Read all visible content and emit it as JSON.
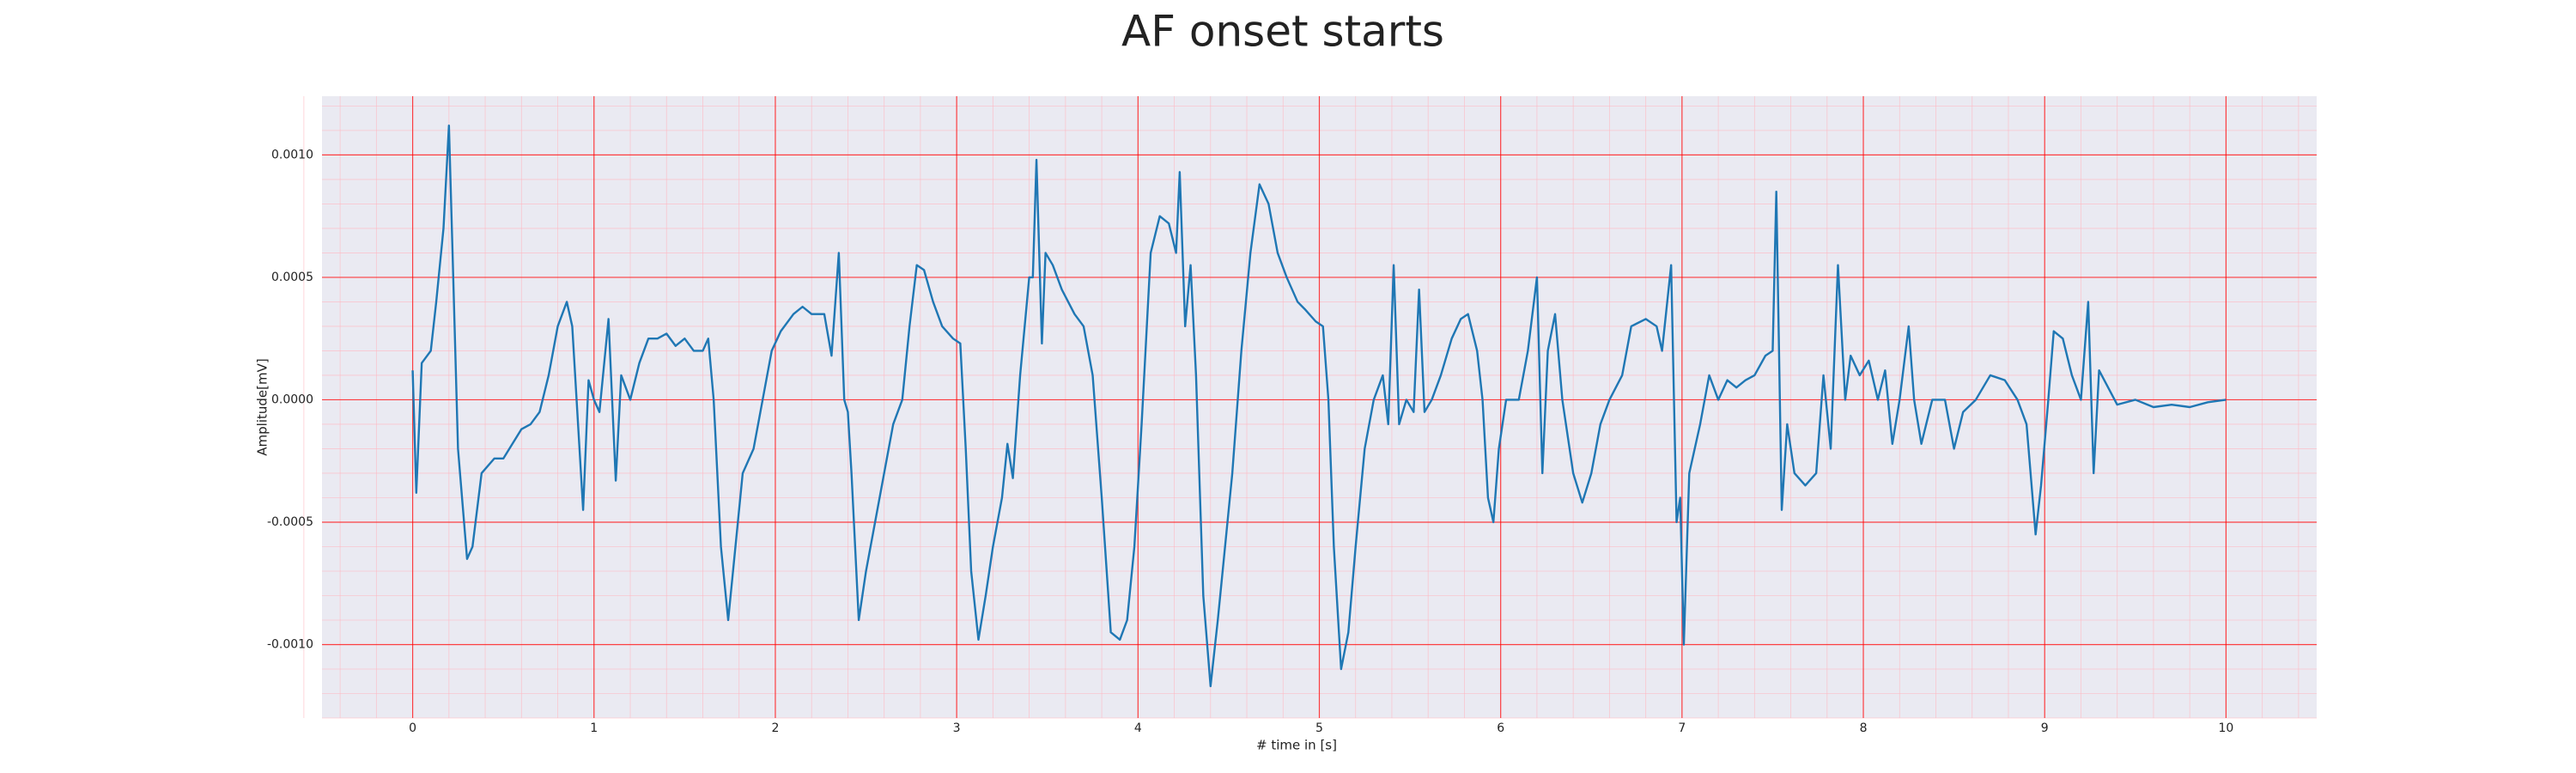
{
  "chart_data": {
    "type": "line",
    "title": "AF onset starts",
    "xlabel": "# time in [s]",
    "ylabel": "Amplitude[mV]",
    "color": "#1f77b4",
    "grid": true,
    "xlim": [
      -0.5,
      10.5
    ],
    "ylim": [
      -0.0013,
      0.00124
    ],
    "xticks": [
      0,
      1,
      2,
      3,
      4,
      5,
      6,
      7,
      8,
      9,
      10
    ],
    "yticks": [
      {
        "value": -0.001,
        "label": "-0.0010"
      },
      {
        "value": -0.0005,
        "label": "-0.0005"
      },
      {
        "value": 0,
        "label": "0.0000"
      },
      {
        "value": 0.0005,
        "label": "0.0005"
      },
      {
        "value": 0.001,
        "label": "0.0010"
      }
    ],
    "x": [
      0,
      0.02,
      0.05,
      0.1,
      0.13,
      0.17,
      0.2,
      0.22,
      0.25,
      0.3,
      0.33,
      0.38,
      0.45,
      0.5,
      0.55,
      0.6,
      0.65,
      0.7,
      0.75,
      0.8,
      0.85,
      0.88,
      0.92,
      0.94,
      0.97,
      1.0,
      1.03,
      1.08,
      1.12,
      1.15,
      1.2,
      1.25,
      1.3,
      1.35,
      1.4,
      1.45,
      1.5,
      1.55,
      1.6,
      1.63,
      1.66,
      1.7,
      1.74,
      1.78,
      1.82,
      1.88,
      1.93,
      1.98,
      2.03,
      2.1,
      2.15,
      2.2,
      2.27,
      2.31,
      2.35,
      2.38,
      2.4,
      2.42,
      2.46,
      2.5,
      2.55,
      2.6,
      2.65,
      2.7,
      2.74,
      2.78,
      2.82,
      2.87,
      2.92,
      2.98,
      3.02,
      3.05,
      3.08,
      3.12,
      3.16,
      3.2,
      3.25,
      3.28,
      3.31,
      3.35,
      3.4,
      3.42,
      3.44,
      3.47,
      3.49,
      3.53,
      3.58,
      3.65,
      3.7,
      3.75,
      3.8,
      3.85,
      3.9,
      3.94,
      3.98,
      4.02,
      4.07,
      4.12,
      4.17,
      4.21,
      4.23,
      4.26,
      4.29,
      4.32,
      4.36,
      4.4,
      4.44,
      4.48,
      4.52,
      4.57,
      4.62,
      4.67,
      4.72,
      4.77,
      4.82,
      4.88,
      4.92,
      4.98,
      5.02,
      5.05,
      5.08,
      5.12,
      5.16,
      5.2,
      5.25,
      5.3,
      5.35,
      5.38,
      5.41,
      5.44,
      5.48,
      5.52,
      5.55,
      5.58,
      5.62,
      5.67,
      5.73,
      5.78,
      5.82,
      5.87,
      5.9,
      5.93,
      5.96,
      5.99,
      6.03,
      6.1,
      6.15,
      6.2,
      6.23,
      6.26,
      6.3,
      6.34,
      6.4,
      6.45,
      6.5,
      6.55,
      6.6,
      6.67,
      6.72,
      6.8,
      6.86,
      6.89,
      6.94,
      6.97,
      6.99,
      7.01,
      7.04,
      7.1,
      7.15,
      7.2,
      7.25,
      7.3,
      7.35,
      7.4,
      7.46,
      7.5,
      7.52,
      7.55,
      7.58,
      7.62,
      7.68,
      7.74,
      7.78,
      7.82,
      7.86,
      7.9,
      7.93,
      7.98,
      8.03,
      8.08,
      8.12,
      8.16,
      8.2,
      8.25,
      8.28,
      8.32,
      8.38,
      8.45,
      8.5,
      8.55,
      8.62,
      8.7,
      8.78,
      8.85,
      8.9,
      8.95,
      8.98,
      9.02,
      9.05,
      9.1,
      9.15,
      9.2,
      9.24,
      9.27,
      9.3,
      9.35,
      9.4,
      9.5,
      9.6,
      9.7,
      9.8,
      9.9,
      10.0
    ],
    "values": [
      0.00012,
      -0.00038,
      0.00015,
      0.0002,
      0.0004,
      0.0007,
      0.00112,
      0.0006,
      -0.0002,
      -0.00065,
      -0.0006,
      -0.0003,
      -0.00024,
      -0.00024,
      -0.00018,
      -0.00012,
      -0.0001,
      -5e-05,
      0.0001,
      0.0003,
      0.0004,
      0.0003,
      -0.0002,
      -0.00045,
      8e-05,
      0,
      -5e-05,
      0.00033,
      -0.00033,
      0.0001,
      0,
      0.00015,
      0.00025,
      0.00025,
      0.00027,
      0.00022,
      0.00025,
      0.0002,
      0.0002,
      0.00025,
      0,
      -0.0006,
      -0.0009,
      -0.0006,
      -0.0003,
      -0.0002,
      0,
      0.0002,
      0.00028,
      0.00035,
      0.00038,
      0.00035,
      0.00035,
      0.00018,
      0.0006,
      0,
      -5e-05,
      -0.0003,
      -0.0009,
      -0.0007,
      -0.0005,
      -0.0003,
      -0.0001,
      0,
      0.0003,
      0.00055,
      0.00053,
      0.0004,
      0.0003,
      0.00025,
      0.00023,
      -0.0002,
      -0.0007,
      -0.00098,
      -0.0008,
      -0.0006,
      -0.0004,
      -0.00018,
      -0.00032,
      0.0001,
      0.0005,
      0.0005,
      0.00098,
      0.00023,
      0.0006,
      0.00055,
      0.00045,
      0.00035,
      0.0003,
      0.0001,
      -0.0004,
      -0.00095,
      -0.00098,
      -0.0009,
      -0.0006,
      -0.0001,
      0.0006,
      0.00075,
      0.00072,
      0.0006,
      0.00093,
      0.0003,
      0.00055,
      0.0001,
      -0.0008,
      -0.00117,
      -0.0009,
      -0.0006,
      -0.0003,
      0.0002,
      0.0006,
      0.00088,
      0.0008,
      0.0006,
      0.0005,
      0.0004,
      0.00037,
      0.00032,
      0.0003,
      0,
      -0.0006,
      -0.0011,
      -0.00095,
      -0.0006,
      -0.0002,
      0,
      0.0001,
      -0.0001,
      0.00055,
      -0.0001,
      0,
      -5e-05,
      0.00045,
      -5e-05,
      0,
      0.0001,
      0.00025,
      0.00033,
      0.00035,
      0.0002,
      0,
      -0.0004,
      -0.0005,
      -0.0002,
      0,
      0,
      0.0002,
      0.0005,
      -0.0003,
      0.0002,
      0.00035,
      0,
      -0.0003,
      -0.00042,
      -0.0003,
      -0.0001,
      0,
      0.0001,
      0.0003,
      0.00033,
      0.0003,
      0.0002,
      0.00055,
      -0.0005,
      -0.0004,
      -0.001,
      -0.0003,
      -0.0001,
      0.0001,
      0,
      8e-05,
      5e-05,
      8e-05,
      0.0001,
      0.00018,
      0.0002,
      0.00085,
      -0.00045,
      -0.0001,
      -0.0003,
      -0.00035,
      -0.0003,
      0.0001,
      -0.0002,
      0.00055,
      0,
      0.00018,
      0.0001,
      0.00016,
      0,
      0.00012,
      -0.00018,
      0,
      0.0003,
      0,
      -0.00018,
      0,
      0,
      -0.0002,
      -5e-05,
      0,
      0.0001,
      8e-05,
      0,
      -0.0001,
      -0.00055,
      -0.00035,
      0,
      0.00028,
      0.00025,
      0.0001,
      0,
      0.0004,
      -0.0003,
      0.00012,
      5e-05,
      -2e-05,
      0,
      -3e-05,
      -2e-05,
      -3e-05,
      -1e-05,
      0
    ]
  }
}
